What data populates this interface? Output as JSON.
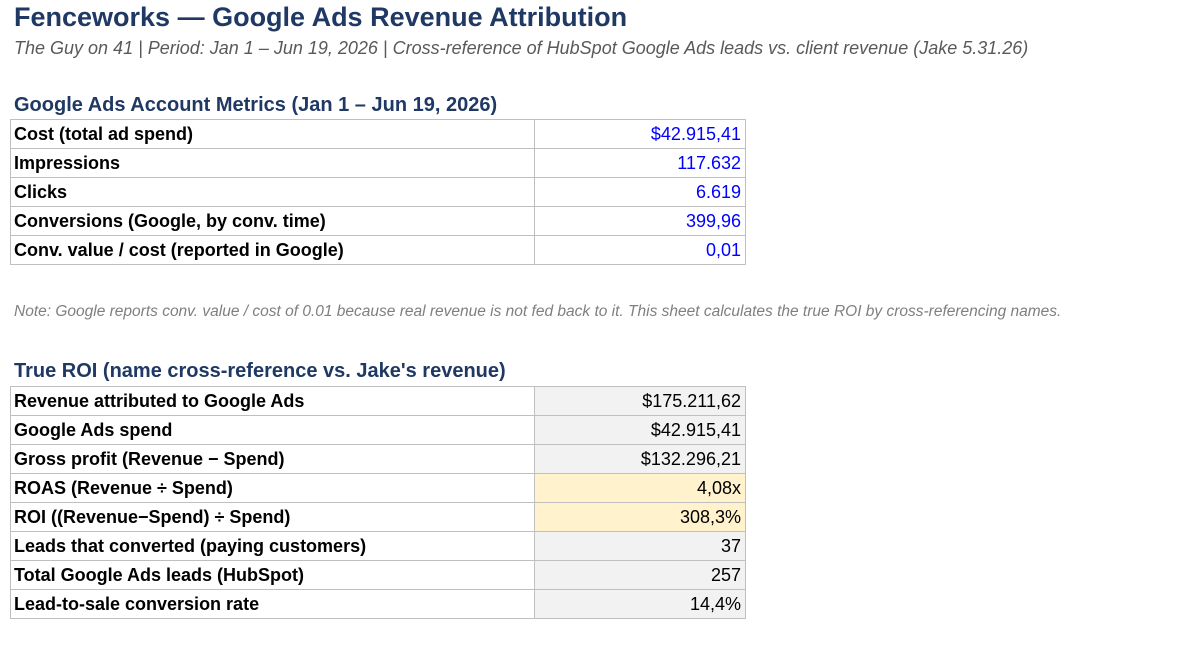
{
  "header": {
    "title": "Fenceworks — Google Ads Revenue Attribution",
    "subtitle": "The Guy on 41  |  Period: Jan 1 – Jun 19, 2026  |  Cross-reference of HubSpot Google Ads leads vs. client revenue (Jake 5.31.26)"
  },
  "metrics": {
    "title": "Google Ads Account Metrics (Jan 1 – Jun 19, 2026)",
    "rows": [
      {
        "label": "Cost (total ad spend)",
        "value": "$42.915,41"
      },
      {
        "label": "Impressions",
        "value": "117.632"
      },
      {
        "label": "Clicks",
        "value": "6.619"
      },
      {
        "label": "Conversions (Google, by conv. time)",
        "value": "399,96"
      },
      {
        "label": "Conv. value / cost (reported in Google)",
        "value": "0,01"
      }
    ]
  },
  "note": "Note: Google reports conv. value / cost of 0.01 because real revenue is not fed back to it. This sheet calculates the true ROI by cross-referencing names.",
  "roi": {
    "title": "True ROI (name cross-reference vs. Jake's revenue)",
    "rows": [
      {
        "label": "Revenue attributed to Google Ads",
        "value": "$175.211,62"
      },
      {
        "label": "Google Ads spend",
        "value": "$42.915,41"
      },
      {
        "label": "Gross profit (Revenue − Spend)",
        "value": "$132.296,21"
      },
      {
        "label": "ROAS (Revenue ÷ Spend)",
        "value": "4,08x"
      },
      {
        "label": "ROI ((Revenue−Spend) ÷ Spend)",
        "value": "308,3%"
      },
      {
        "label": "Leads that converted (paying customers)",
        "value": "37"
      },
      {
        "label": "Total Google Ads leads (HubSpot)",
        "value": "257"
      },
      {
        "label": "Lead-to-sale conversion rate",
        "value": "14,4%"
      }
    ]
  },
  "colors": {
    "title": "#1f3864",
    "input_value": "#0000ff",
    "calc_fill": "#f2f2f2",
    "highlight_fill": "#fff2cc",
    "border": "#bfbfbf"
  }
}
